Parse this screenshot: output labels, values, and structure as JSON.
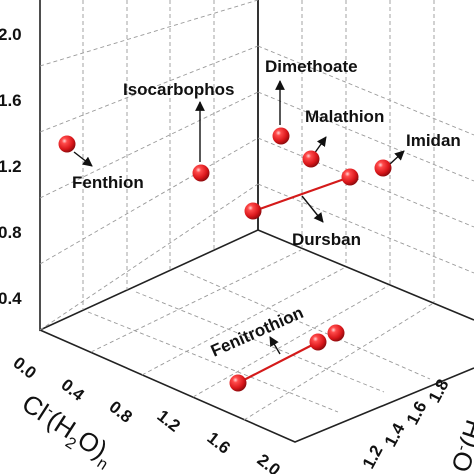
{
  "chart_data": {
    "type": "scatter",
    "projection": "3d",
    "title": "",
    "zlabel": "",
    "z_ticks": [
      "2.0",
      "1.6",
      "1.2",
      "0.8",
      "0.4"
    ],
    "x_ticks": [
      "0.0",
      "0.4",
      "0.8",
      "1.2",
      "1.6",
      "2.0"
    ],
    "x_axis_title": {
      "prefix": "Cl",
      "sup": "-",
      "mid": "(H",
      "sub1": "2",
      "mid2": "O)",
      "sub2": "n"
    },
    "y_ticks": [
      "1.2",
      "1.4",
      "1.6",
      "1.8"
    ],
    "y_axis_title": {
      "text": "O",
      "sup": "-",
      "rest": "(H"
    },
    "z_ylim": [
      0,
      2.0
    ],
    "points": [
      {
        "label": "Fenthion",
        "z": 1.3
      },
      {
        "label": "Isocarbophos",
        "z": 1.12
      },
      {
        "label": "Dimethoate",
        "z": 1.35
      },
      {
        "label": "Malathion",
        "z": 1.2
      },
      {
        "label": "Imidan",
        "z": 1.15
      },
      {
        "label": "Dursban (a)",
        "z": 0.8
      },
      {
        "label": "Dursban (b)",
        "z": 1.05
      },
      {
        "label": "Fenitrothion (a)",
        "z": 0.4
      },
      {
        "label": "Fenitrothion (b)",
        "z": 0.4
      },
      {
        "label": "Fenitrothion (c)",
        "z": 0.4
      }
    ],
    "annotations": [
      "Fenthion",
      "Isocarbophos",
      "Dimethoate",
      "Malathion",
      "Imidan",
      "Dursban",
      "Fenitrothion"
    ],
    "point_color": "#e0191b",
    "connector_color": "#d41a1a",
    "grid": true
  }
}
